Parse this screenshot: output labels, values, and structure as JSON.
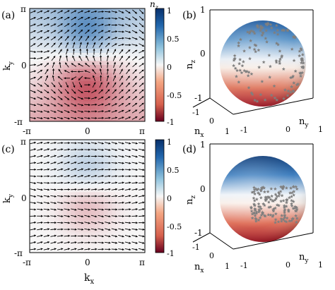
{
  "figure": {
    "panels": [
      {
        "label": "(a)",
        "type": "vector-field-heatmap",
        "xlabel": "k",
        "xlabel_sub": "x",
        "ylabel": "k",
        "ylabel_sub": "y",
        "xticks": [
          "-π",
          "0",
          "π"
        ],
        "yticks": [
          "π",
          "0",
          "-π"
        ],
        "show_xticklabels": true,
        "show_xlabel": false,
        "field": "skyrmion"
      },
      {
        "label": "(b)",
        "type": "sphere-scatter",
        "zlabel": "n",
        "zlabel_sub": "z",
        "xlabel": "n",
        "xlabel_sub": "x",
        "ylabel": "n",
        "ylabel_sub": "y",
        "zticks": [
          "1",
          "0",
          "-1"
        ],
        "xticks": [
          "-1",
          "0",
          "1"
        ],
        "yticks": [
          "-1",
          "0",
          "1"
        ],
        "coverage": "full"
      },
      {
        "label": "(c)",
        "type": "vector-field-heatmap",
        "xlabel": "k",
        "xlabel_sub": "x",
        "ylabel": "k",
        "ylabel_sub": "y",
        "xticks": [
          "-π",
          "0",
          "π"
        ],
        "yticks": [
          "π",
          "0",
          "-π"
        ],
        "show_xticklabels": true,
        "show_xlabel": true,
        "field": "trivial"
      },
      {
        "label": "(d)",
        "type": "sphere-scatter",
        "zlabel": "n",
        "zlabel_sub": "z",
        "xlabel": "n",
        "xlabel_sub": "x",
        "ylabel": "n",
        "ylabel_sub": "y",
        "zticks": [
          "1",
          "0",
          "-1"
        ],
        "xticks": [
          "-1",
          "0",
          "1"
        ],
        "yticks": [
          "-1",
          "0",
          "1"
        ],
        "coverage": "partial"
      }
    ],
    "colorbar": {
      "label": "n",
      "label_sub": "z",
      "ticks": [
        "1",
        "0.5",
        "0",
        "-0.5",
        "-1"
      ],
      "range": [
        -1,
        1
      ],
      "color_max": "#2166ac",
      "color_mid": "#f7f7f7",
      "color_min": "#b2182b"
    },
    "colors": {
      "arrow": "#000000",
      "scatter_point": "#7f7f7f",
      "axis": "#000000"
    }
  }
}
